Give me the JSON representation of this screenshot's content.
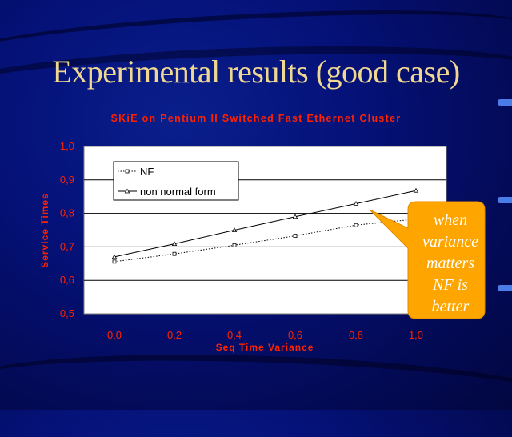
{
  "slide_title": "Experimental results (good case)",
  "callout": {
    "lines": [
      "when",
      "variance",
      "matters",
      "NF is",
      "better"
    ]
  },
  "colors": {
    "title": "#f0d890",
    "chart_title": "#ff2200",
    "axis_text": "#ff2200",
    "plot_bg": "#ffffff",
    "callout_fill": "#ffa500"
  },
  "chart_data": {
    "type": "line",
    "title": "SKiE on Pentium II Switched Fast Ethernet Cluster",
    "xlabel": "Seq Time Variance",
    "ylabel": "Service Times",
    "x": [
      "0,0",
      "0,2",
      "0,4",
      "0,6",
      "0,8",
      "1,0"
    ],
    "x_values": [
      0.0,
      0.2,
      0.4,
      0.6,
      0.8,
      1.0
    ],
    "y_ticks": [
      "1,0",
      "0,9",
      "0,8",
      "0,7",
      "0,6",
      "0,5"
    ],
    "ylim": [
      0.5,
      1.0
    ],
    "grid": true,
    "legend_position": "top-left",
    "series": [
      {
        "name": "NF",
        "marker": "square",
        "line": "dotted",
        "values": [
          0.656,
          0.679,
          0.705,
          0.733,
          0.765,
          0.783
        ]
      },
      {
        "name": "non normal form",
        "marker": "triangle",
        "line": "solid",
        "values": [
          0.67,
          0.709,
          0.75,
          0.79,
          0.829,
          0.868
        ]
      }
    ]
  }
}
